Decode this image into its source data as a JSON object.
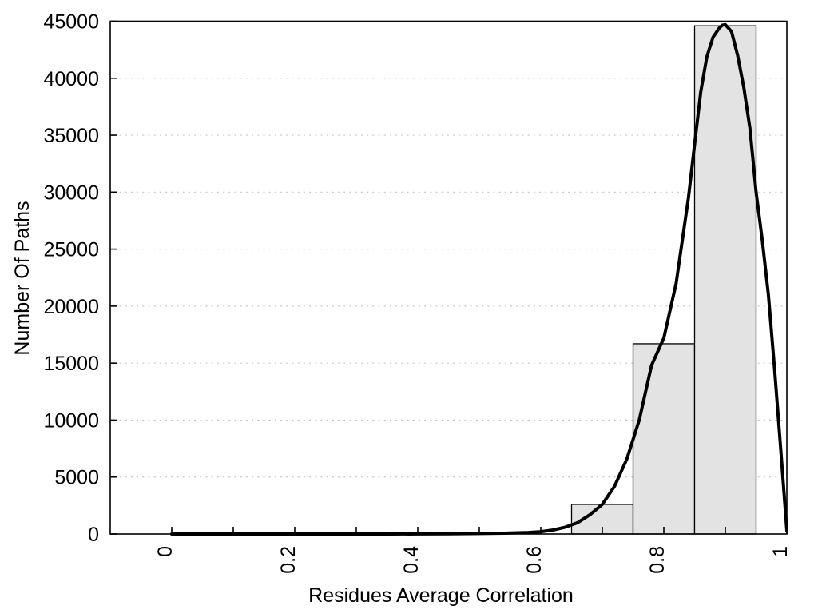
{
  "figure": {
    "background": "#ffffff"
  },
  "chart_data": {
    "type": "histogram",
    "title": "",
    "xlabel": "Residues Average Correlation",
    "ylabel": "Number Of Paths",
    "xlim": [
      -0.1,
      1.0
    ],
    "ylim": [
      0,
      45000
    ],
    "grid": "horizontal dotted lines at every y tick",
    "legend": "none",
    "frame": "full box around plot area",
    "x_ticks": {
      "major_values": [
        0,
        0.2,
        0.4,
        0.6,
        0.8,
        1
      ],
      "major_labels": [
        "0",
        "0.2",
        "0.4",
        "0.6",
        "0.8",
        "1"
      ],
      "minor_step": 0.1,
      "label_rotation_deg": -90
    },
    "y_ticks": {
      "values": [
        0,
        5000,
        10000,
        15000,
        20000,
        25000,
        30000,
        35000,
        40000,
        45000
      ],
      "labels": [
        "0",
        "5000",
        "10000",
        "15000",
        "20000",
        "25000",
        "30000",
        "35000",
        "40000",
        "45000"
      ]
    },
    "bars": {
      "bin_edges": [
        0.65,
        0.75,
        0.85,
        0.95
      ],
      "counts": [
        2600,
        16700,
        44600
      ]
    },
    "density_curve": {
      "x": [
        0,
        0.05,
        0.1,
        0.15,
        0.2,
        0.25,
        0.3,
        0.35,
        0.4,
        0.45,
        0.5,
        0.54,
        0.58,
        0.6,
        0.62,
        0.64,
        0.66,
        0.68,
        0.7,
        0.72,
        0.74,
        0.76,
        0.78,
        0.8,
        0.82,
        0.84,
        0.85,
        0.86,
        0.87,
        0.88,
        0.89,
        0.895,
        0.9,
        0.91,
        0.92,
        0.93,
        0.94,
        0.95,
        0.96,
        0.97,
        0.98,
        0.99,
        1.0
      ],
      "y": [
        0,
        0,
        0,
        0,
        0,
        0,
        0,
        0,
        10,
        20,
        40,
        70,
        130,
        200,
        350,
        600,
        1000,
        1700,
        2600,
        4200,
        6600,
        10000,
        14800,
        17200,
        22000,
        29500,
        34200,
        38800,
        41900,
        43600,
        44400,
        44650,
        44700,
        44100,
        42000,
        39200,
        35600,
        30000,
        25800,
        21000,
        14500,
        7500,
        300
      ]
    },
    "styles": {
      "bar_fill": "#e3e3e3",
      "bar_stroke": "#000000",
      "curve_color": "#000000",
      "grid_color": "#c3c3c3",
      "axis_color": "#000000",
      "text_color": "#000000"
    }
  }
}
